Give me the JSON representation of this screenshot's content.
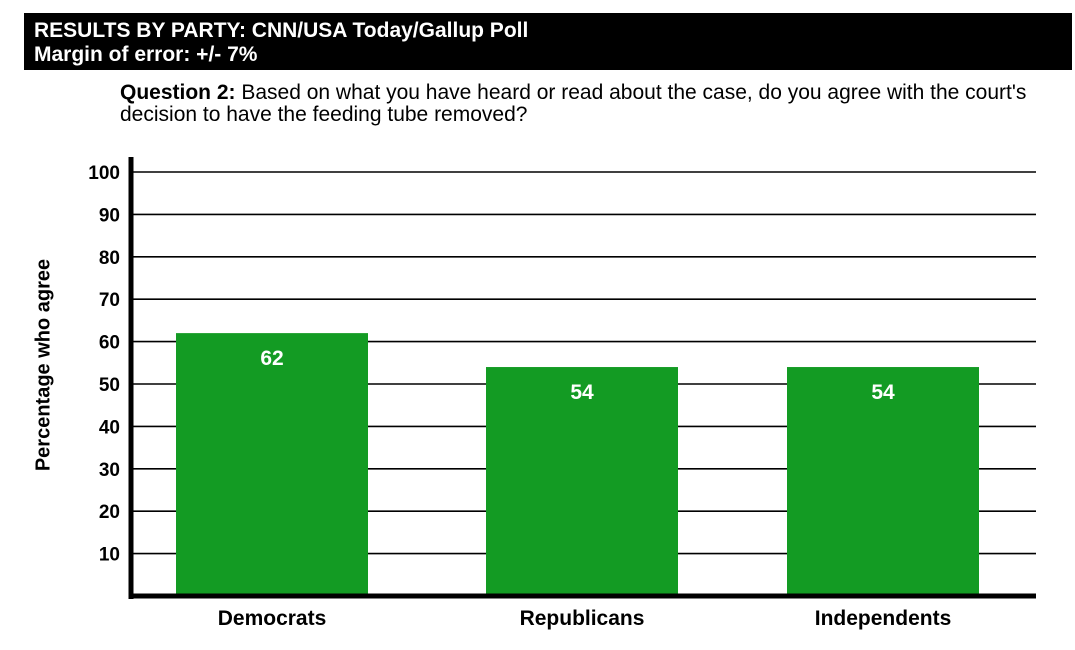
{
  "header": {
    "title": "RESULTS BY PARTY: CNN/USA Today/Gallup Poll",
    "subtitle": "Margin of error: +/- 7%"
  },
  "question": {
    "label": "Question 2:",
    "text": " Based on what you have heard or read about the case, do you agree with the court's decision to have the feeding tube removed?"
  },
  "chart_data": {
    "type": "bar",
    "categories": [
      "Democrats",
      "Republicans",
      "Independents"
    ],
    "values": [
      62,
      54,
      54
    ],
    "data_labels": [
      "62",
      "54",
      "54"
    ],
    "ylabel": "Percentage who agree",
    "xlabel": "",
    "ylim": [
      0,
      100
    ],
    "yticks": [
      10,
      20,
      30,
      40,
      50,
      60,
      70,
      80,
      90,
      100
    ],
    "grid": true,
    "bar_color": "#139b23"
  }
}
